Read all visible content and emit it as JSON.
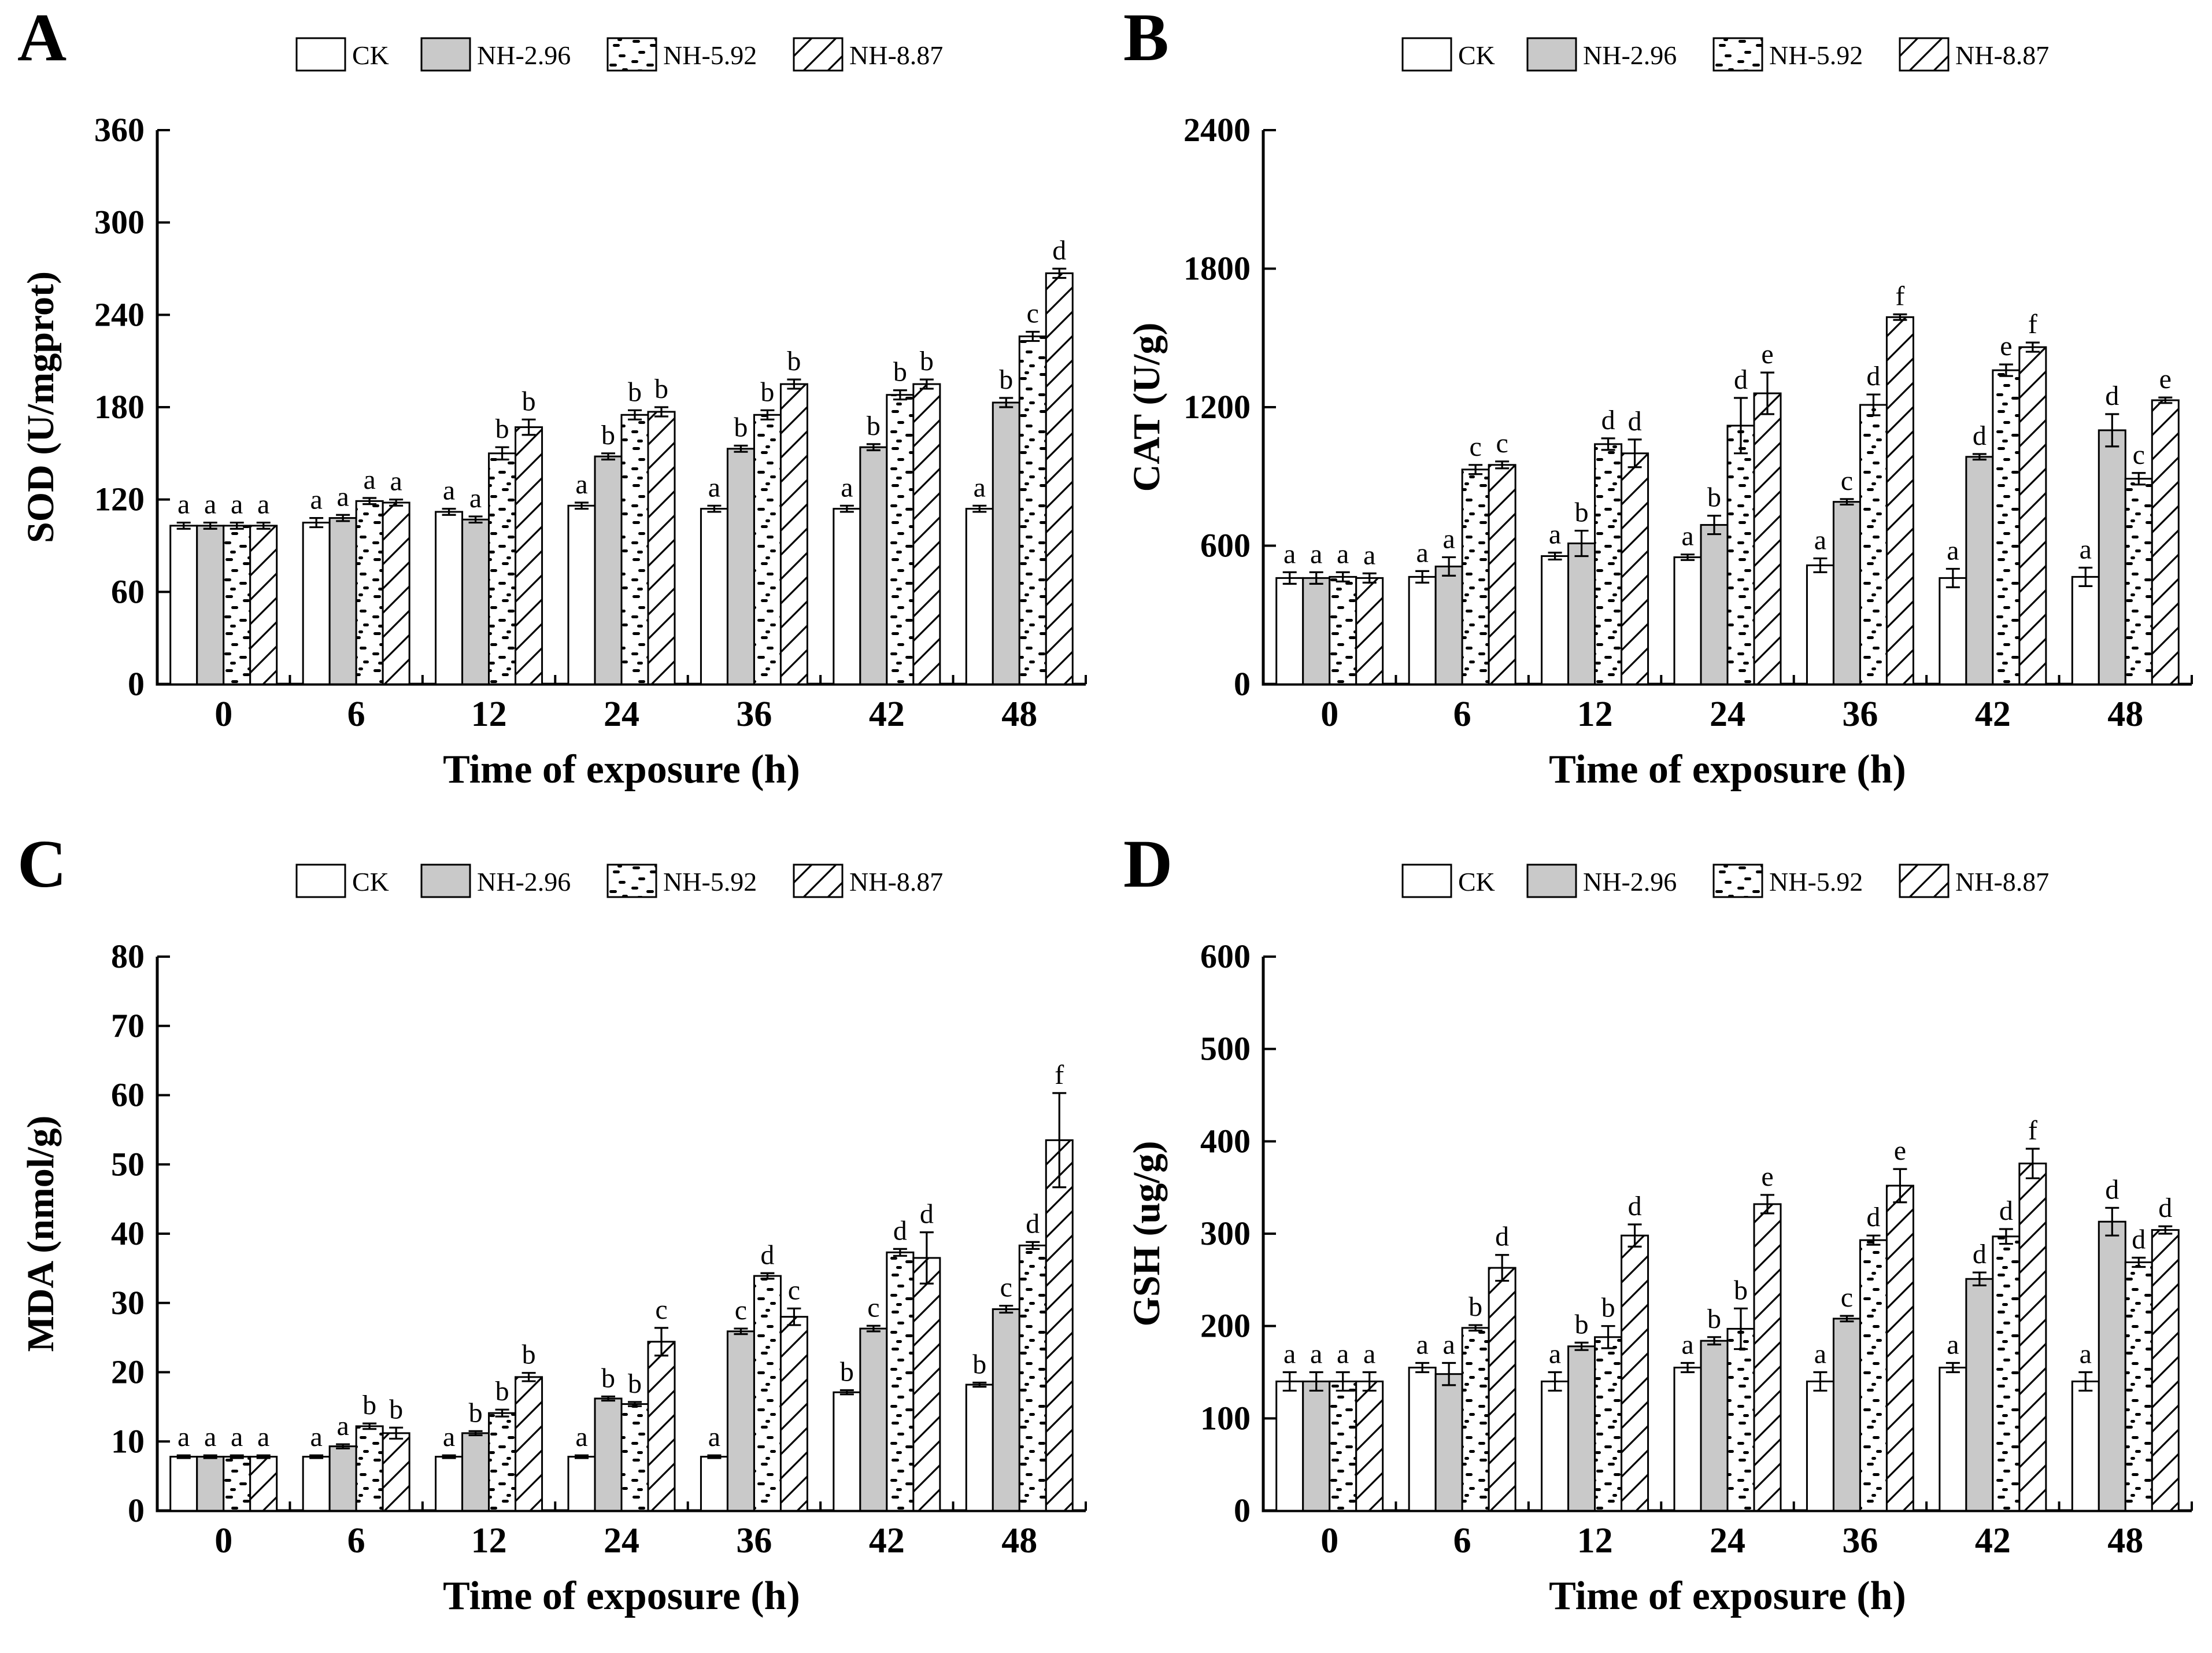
{
  "figure": {
    "background": "#ffffff",
    "ink_color": "#000000",
    "gray_fill": "#c9c9c9",
    "legend_labels": [
      "CK",
      "NH-2.96",
      "NH-5.92",
      "NH-8.87"
    ]
  },
  "chart_data": [
    {
      "panel": "A",
      "type": "bar",
      "ylabel": "SOD (U/mgprot)",
      "xlabel": "Time of exposure (h)",
      "ylim": [
        0,
        360
      ],
      "ytick_step": 60,
      "grid": false,
      "legend_position": "top",
      "categories": [
        "0",
        "6",
        "12",
        "24",
        "36",
        "42",
        "48"
      ],
      "series": [
        {
          "name": "CK",
          "pattern": "white",
          "values": [
            103,
            105,
            112,
            116,
            114,
            114,
            114
          ],
          "errors": [
            2,
            3,
            2,
            2,
            2,
            2,
            2
          ],
          "letters": [
            "a",
            "a",
            "a",
            "a",
            "a",
            "a",
            "a"
          ]
        },
        {
          "name": "NH-2.96",
          "pattern": "gray",
          "values": [
            103,
            108,
            107,
            148,
            153,
            154,
            183
          ],
          "errors": [
            2,
            2,
            2,
            2,
            2,
            2,
            3
          ],
          "letters": [
            "a",
            "a",
            "a",
            "b",
            "b",
            "b",
            "b"
          ]
        },
        {
          "name": "NH-5.92",
          "pattern": "dots",
          "values": [
            103,
            119,
            150,
            175,
            175,
            188,
            226
          ],
          "errors": [
            2,
            2,
            4,
            3,
            3,
            3,
            3
          ],
          "letters": [
            "a",
            "a",
            "b",
            "b",
            "b",
            "b",
            "c"
          ]
        },
        {
          "name": "NH-8.87",
          "pattern": "hatch",
          "values": [
            103,
            118,
            167,
            177,
            195,
            195,
            267
          ],
          "errors": [
            2,
            2,
            5,
            3,
            3,
            3,
            3
          ],
          "letters": [
            "a",
            "a",
            "b",
            "b",
            "b",
            "b",
            "d"
          ]
        }
      ]
    },
    {
      "panel": "B",
      "type": "bar",
      "ylabel": "CAT (U/g)",
      "xlabel": "Time of exposure (h)",
      "ylim": [
        0,
        2400
      ],
      "ytick_step": 600,
      "grid": false,
      "legend_position": "top",
      "categories": [
        "0",
        "6",
        "12",
        "24",
        "36",
        "42",
        "48"
      ],
      "series": [
        {
          "name": "CK",
          "pattern": "white",
          "values": [
            460,
            465,
            555,
            550,
            515,
            460,
            465
          ],
          "errors": [
            25,
            25,
            15,
            12,
            30,
            40,
            40
          ],
          "letters": [
            "a",
            "a",
            "a",
            "a",
            "a",
            "a",
            "a"
          ]
        },
        {
          "name": "NH-2.96",
          "pattern": "gray",
          "values": [
            460,
            510,
            610,
            690,
            790,
            985,
            1100
          ],
          "errors": [
            25,
            40,
            55,
            40,
            12,
            12,
            70
          ],
          "letters": [
            "a",
            "a",
            "b",
            "b",
            "c",
            "d",
            "d"
          ]
        },
        {
          "name": "NH-5.92",
          "pattern": "dots",
          "values": [
            465,
            930,
            1040,
            1120,
            1210,
            1360,
            890
          ],
          "errors": [
            20,
            20,
            25,
            120,
            45,
            25,
            25
          ],
          "letters": [
            "a",
            "c",
            "d",
            "d",
            "d",
            "e",
            "c"
          ]
        },
        {
          "name": "NH-8.87",
          "pattern": "hatch",
          "values": [
            460,
            950,
            1000,
            1260,
            1590,
            1460,
            1230
          ],
          "errors": [
            20,
            15,
            60,
            90,
            12,
            20,
            12
          ],
          "letters": [
            "a",
            "c",
            "d",
            "e",
            "f",
            "f",
            "e"
          ]
        }
      ]
    },
    {
      "panel": "C",
      "type": "bar",
      "ylabel": "MDA (nmol/g)",
      "xlabel": "Time of exposure (h)",
      "ylim": [
        0,
        80
      ],
      "ytick_step": 10,
      "grid": false,
      "legend_position": "top",
      "categories": [
        "0",
        "6",
        "12",
        "24",
        "36",
        "42",
        "48"
      ],
      "series": [
        {
          "name": "CK",
          "pattern": "white",
          "values": [
            7.8,
            7.8,
            7.8,
            7.8,
            7.8,
            17.1,
            18.2
          ],
          "errors": [
            0.2,
            0.2,
            0.2,
            0.2,
            0.2,
            0.3,
            0.3
          ],
          "letters": [
            "a",
            "a",
            "a",
            "a",
            "a",
            "b",
            "b"
          ]
        },
        {
          "name": "NH-2.96",
          "pattern": "gray",
          "values": [
            7.8,
            9.3,
            11.2,
            16.2,
            25.9,
            26.3,
            29.1
          ],
          "errors": [
            0.2,
            0.3,
            0.3,
            0.3,
            0.4,
            0.4,
            0.5
          ],
          "letters": [
            "a",
            "a",
            "b",
            "b",
            "c",
            "c",
            "c"
          ]
        },
        {
          "name": "NH-5.92",
          "pattern": "dots",
          "values": [
            7.8,
            12.2,
            14.1,
            15.4,
            33.9,
            37.3,
            38.3
          ],
          "errors": [
            0.2,
            0.4,
            0.5,
            0.3,
            0.4,
            0.5,
            0.5
          ],
          "letters": [
            "a",
            "b",
            "b",
            "b",
            "d",
            "d",
            "d"
          ]
        },
        {
          "name": "NH-8.87",
          "pattern": "hatch",
          "values": [
            7.8,
            11.2,
            19.3,
            24.4,
            28.0,
            36.5,
            53.5
          ],
          "errors": [
            0.2,
            0.8,
            0.6,
            2.0,
            1.2,
            3.7,
            6.8
          ],
          "letters": [
            "a",
            "b",
            "b",
            "c",
            "c",
            "d",
            "f"
          ]
        }
      ]
    },
    {
      "panel": "D",
      "type": "bar",
      "ylabel": "GSH (ug/g)",
      "xlabel": "Time of exposure (h)",
      "ylim": [
        0,
        600
      ],
      "ytick_step": 100,
      "grid": false,
      "legend_position": "top",
      "categories": [
        "0",
        "6",
        "12",
        "24",
        "36",
        "42",
        "48"
      ],
      "series": [
        {
          "name": "CK",
          "pattern": "white",
          "values": [
            140,
            155,
            140,
            155,
            140,
            155,
            140
          ],
          "errors": [
            10,
            5,
            10,
            5,
            10,
            5,
            10
          ],
          "letters": [
            "a",
            "a",
            "a",
            "a",
            "a",
            "a",
            "a"
          ]
        },
        {
          "name": "NH-2.96",
          "pattern": "gray",
          "values": [
            140,
            148,
            178,
            184,
            208,
            251,
            313
          ],
          "errors": [
            10,
            12,
            4,
            4,
            3,
            7,
            15
          ],
          "letters": [
            "a",
            "a",
            "b",
            "b",
            "c",
            "d",
            "d"
          ]
        },
        {
          "name": "NH-5.92",
          "pattern": "dots",
          "values": [
            140,
            198,
            188,
            197,
            293,
            297,
            269
          ],
          "errors": [
            10,
            3,
            12,
            22,
            5,
            8,
            5
          ],
          "letters": [
            "a",
            "b",
            "b",
            "b",
            "d",
            "d",
            "d"
          ]
        },
        {
          "name": "NH-8.87",
          "pattern": "hatch",
          "values": [
            140,
            263,
            298,
            332,
            352,
            376,
            304
          ],
          "errors": [
            10,
            14,
            12,
            10,
            18,
            16,
            4
          ],
          "letters": [
            "a",
            "d",
            "d",
            "e",
            "e",
            "f",
            "d"
          ]
        }
      ]
    }
  ]
}
